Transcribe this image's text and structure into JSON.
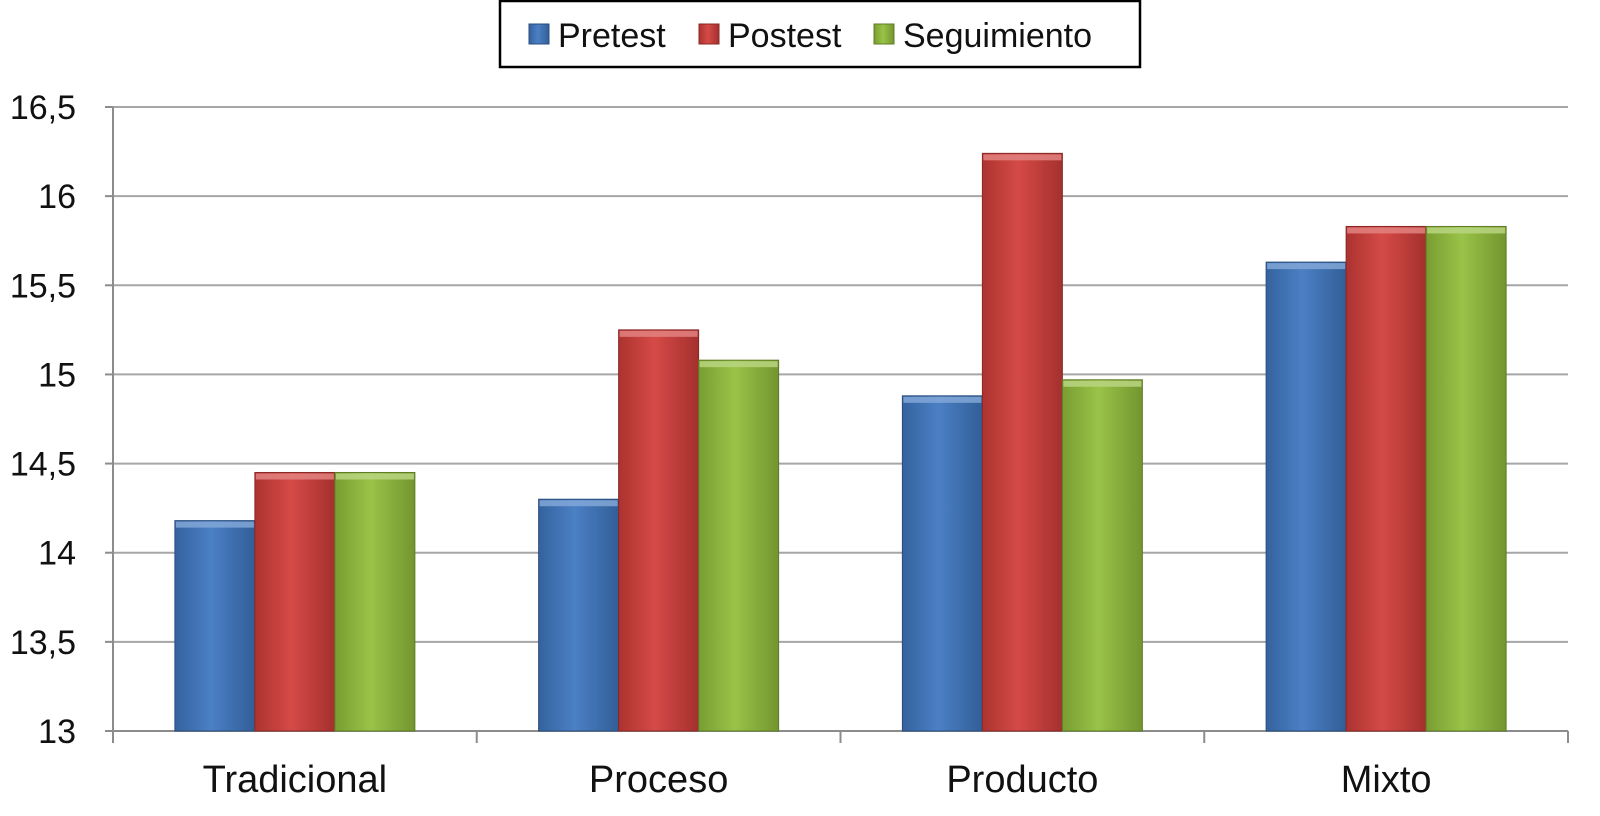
{
  "chart_data": {
    "type": "bar",
    "categories": [
      "Tradicional",
      "Proceso",
      "Producto",
      "Mixto"
    ],
    "series": [
      {
        "name": "Pretest",
        "values": [
          14.18,
          14.3,
          14.88,
          15.63
        ],
        "color": "#3f78c1"
      },
      {
        "name": "Postest",
        "values": [
          14.45,
          15.25,
          16.24,
          15.83
        ],
        "color": "#d23e3b"
      },
      {
        "name": "Seguimiento",
        "values": [
          14.45,
          15.08,
          14.97,
          15.83
        ],
        "color": "#93bf3c"
      }
    ],
    "ylim": [
      13,
      16.5
    ],
    "yticks": [
      "13",
      "13,5",
      "14",
      "14,5",
      "15",
      "15,5",
      "16",
      "16,5"
    ],
    "grid": true,
    "legend": "top-center",
    "title": "",
    "xlabel": "",
    "ylabel": ""
  }
}
